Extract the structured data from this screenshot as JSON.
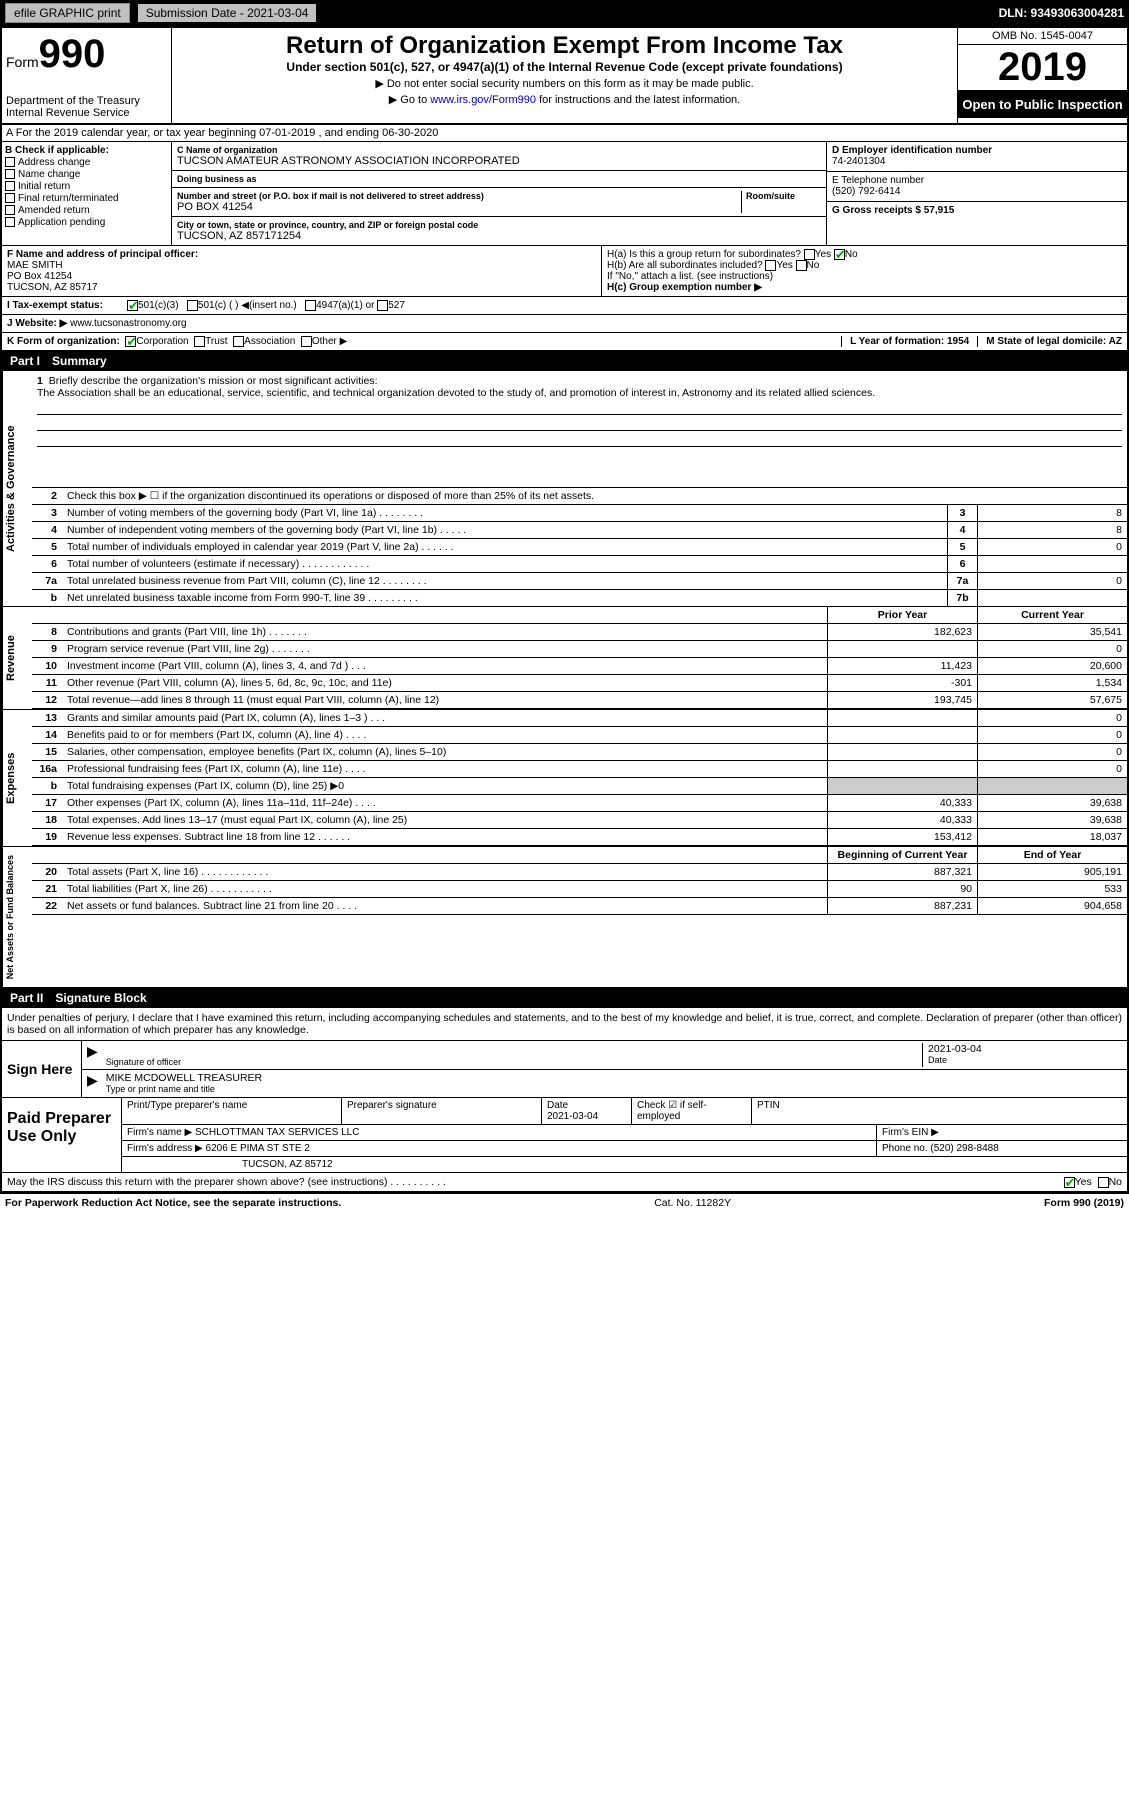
{
  "topbar": {
    "efile": "efile GRAPHIC print",
    "submission_label": "Submission Date - 2021-03-04",
    "dln": "DLN: 93493063004281"
  },
  "header": {
    "form_prefix": "Form",
    "form_number": "990",
    "dept": "Department of the Treasury\nInternal Revenue Service",
    "title": "Return of Organization Exempt From Income Tax",
    "subtitle": "Under section 501(c), 527, or 4947(a)(1) of the Internal Revenue Code (except private foundations)",
    "note1": "▶ Do not enter social security numbers on this form as it may be made public.",
    "note2_prefix": "▶ Go to ",
    "note2_link": "www.irs.gov/Form990",
    "note2_suffix": " for instructions and the latest information.",
    "omb": "OMB No. 1545-0047",
    "year": "2019",
    "open_public": "Open to Public Inspection"
  },
  "row_a": "A For the 2019 calendar year, or tax year beginning 07-01-2019    , and ending 06-30-2020",
  "section_b": {
    "label": "B Check if applicable:",
    "opts": [
      "Address change",
      "Name change",
      "Initial return",
      "Final return/terminated",
      "Amended return",
      "Application pending"
    ]
  },
  "section_c": {
    "name_label": "C Name of organization",
    "name": "TUCSON AMATEUR ASTRONOMY ASSOCIATION INCORPORATED",
    "dba_label": "Doing business as",
    "dba": "",
    "addr_label": "Number and street (or P.O. box if mail is not delivered to street address)",
    "room_label": "Room/suite",
    "addr": "PO BOX 41254",
    "city_label": "City or town, state or province, country, and ZIP or foreign postal code",
    "city": "TUCSON, AZ  857171254"
  },
  "section_d": {
    "ein_label": "D Employer identification number",
    "ein": "74-2401304",
    "phone_label": "E Telephone number",
    "phone": "(520) 792-6414",
    "gross_label": "G Gross receipts $ 57,915"
  },
  "section_f": {
    "label": "F  Name and address of principal officer:",
    "name": "MAE SMITH",
    "addr1": "PO Box 41254",
    "addr2": "TUCSON, AZ  85717"
  },
  "section_h": {
    "ha": "H(a)  Is this a group return for subordinates?",
    "ha_yes": "Yes",
    "ha_no": "No",
    "hb": "H(b)  Are all subordinates included?",
    "hb_yes": "Yes",
    "hb_no": "No",
    "hb_note": "If \"No,\" attach a list. (see instructions)",
    "hc": "H(c)  Group exemption number ▶"
  },
  "row_i": {
    "label": "I   Tax-exempt status:",
    "opt1": "501(c)(3)",
    "opt2": "501(c) (   ) ◀(insert no.)",
    "opt3": "4947(a)(1) or",
    "opt4": "527"
  },
  "row_j": {
    "label": "J   Website: ▶",
    "val": "www.tucsonastronomy.org"
  },
  "row_k": {
    "label": "K Form of organization:",
    "opts": [
      "Corporation",
      "Trust",
      "Association",
      "Other ▶"
    ],
    "l_label": "L Year of formation: 1954",
    "m_label": "M State of legal domicile: AZ"
  },
  "part1": {
    "hdr_num": "Part I",
    "hdr_title": "Summary",
    "sections": {
      "governance": {
        "vtab": "Activities & Governance",
        "q1": {
          "num": "1",
          "text": "Briefly describe the organization's mission or most significant activities:",
          "mission": "The Association shall be an educational, service, scientific, and technical organization devoted to the study of, and promotion of interest in, Astronomy and its related allied sciences."
        },
        "q2": {
          "num": "2",
          "text": "Check this box ▶ ☐  if the organization discontinued its operations or disposed of more than 25% of its net assets."
        },
        "rows": [
          {
            "num": "3",
            "text": "Number of voting members of the governing body (Part VI, line 1a)   .    .    .    .    .    .    .    .",
            "box": "3",
            "val": "8"
          },
          {
            "num": "4",
            "text": "Number of independent voting members of the governing body (Part VI, line 1b)  .    .    .    .    .",
            "box": "4",
            "val": "8"
          },
          {
            "num": "5",
            "text": "Total number of individuals employed in calendar year 2019 (Part V, line 2a)  .    .    .    .    .    .",
            "box": "5",
            "val": "0"
          },
          {
            "num": "6",
            "text": "Total number of volunteers (estimate if necessary)   .    .    .    .    .    .    .    .    .    .    .    .",
            "box": "6",
            "val": ""
          },
          {
            "num": "7a",
            "text": "Total unrelated business revenue from Part VIII, column (C), line 12  .    .    .    .    .    .    .    .",
            "box": "7a",
            "val": "0"
          },
          {
            "num": "b",
            "text": "Net unrelated business taxable income from Form 990-T, line 39   .    .    .    .    .    .    .    .    .",
            "box": "7b",
            "val": ""
          }
        ]
      },
      "revenue": {
        "vtab": "Revenue",
        "hdr_prior": "Prior Year",
        "hdr_current": "Current Year",
        "rows": [
          {
            "num": "8",
            "text": "Contributions and grants (Part VIII, line 1h)   .    .    .    .    .    .    .",
            "v1": "182,623",
            "v2": "35,541"
          },
          {
            "num": "9",
            "text": "Program service revenue (Part VIII, line 2g)   .    .    .    .    .    .    .",
            "v1": "",
            "v2": "0"
          },
          {
            "num": "10",
            "text": "Investment income (Part VIII, column (A), lines 3, 4, and 7d )  .    .    .",
            "v1": "11,423",
            "v2": "20,600"
          },
          {
            "num": "11",
            "text": "Other revenue (Part VIII, column (A), lines 5, 6d, 8c, 9c, 10c, and 11e)",
            "v1": "-301",
            "v2": "1,534"
          },
          {
            "num": "12",
            "text": "Total revenue—add lines 8 through 11 (must equal Part VIII, column (A), line 12)",
            "v1": "193,745",
            "v2": "57,675"
          }
        ]
      },
      "expenses": {
        "vtab": "Expenses",
        "rows": [
          {
            "num": "13",
            "text": "Grants and similar amounts paid (Part IX, column (A), lines 1–3 )  .    .    .",
            "v1": "",
            "v2": "0"
          },
          {
            "num": "14",
            "text": "Benefits paid to or for members (Part IX, column (A), line 4)  .    .    .    .",
            "v1": "",
            "v2": "0"
          },
          {
            "num": "15",
            "text": "Salaries, other compensation, employee benefits (Part IX, column (A), lines 5–10)",
            "v1": "",
            "v2": "0"
          },
          {
            "num": "16a",
            "text": "Professional fundraising fees (Part IX, column (A), line 11e)  .    .    .    .",
            "v1": "",
            "v2": "0"
          },
          {
            "num": "b",
            "text": "Total fundraising expenses (Part IX, column (D), line 25) ▶0",
            "v1": "",
            "v2": "",
            "shade": true
          },
          {
            "num": "17",
            "text": "Other expenses (Part IX, column (A), lines 11a–11d, 11f–24e)  .    .    .    .",
            "v1": "40,333",
            "v2": "39,638"
          },
          {
            "num": "18",
            "text": "Total expenses. Add lines 13–17 (must equal Part IX, column (A), line 25)",
            "v1": "40,333",
            "v2": "39,638"
          },
          {
            "num": "19",
            "text": "Revenue less expenses. Subtract line 18 from line 12 .    .    .    .    .    .",
            "v1": "153,412",
            "v2": "18,037"
          }
        ]
      },
      "netassets": {
        "vtab": "Net Assets or Fund Balances",
        "hdr_begin": "Beginning of Current Year",
        "hdr_end": "End of Year",
        "rows": [
          {
            "num": "20",
            "text": "Total assets (Part X, line 16)  .    .    .    .    .    .    .    .    .    .    .    .",
            "v1": "887,321",
            "v2": "905,191"
          },
          {
            "num": "21",
            "text": "Total liabilities (Part X, line 26)   .    .    .    .    .    .    .    .    .    .    .",
            "v1": "90",
            "v2": "533"
          },
          {
            "num": "22",
            "text": "Net assets or fund balances. Subtract line 21 from line 20  .    .    .    .",
            "v1": "887,231",
            "v2": "904,658"
          }
        ]
      }
    }
  },
  "part2": {
    "hdr_num": "Part II",
    "hdr_title": "Signature Block",
    "declaration": "Under penalties of perjury, I declare that I have examined this return, including accompanying schedules and statements, and to the best of my knowledge and belief, it is true, correct, and complete. Declaration of preparer (other than officer) is based on all information of which preparer has any knowledge.",
    "sign_here": "Sign Here",
    "sig_officer_label": "Signature of officer",
    "sig_date_label": "Date",
    "sig_date": "2021-03-04",
    "officer_name": "MIKE MCDOWELL  TREASURER",
    "officer_label": "Type or print name and title",
    "paid_preparer": "Paid Preparer Use Only",
    "prep_name_label": "Print/Type preparer's name",
    "prep_sig_label": "Preparer's signature",
    "prep_date_label": "Date",
    "prep_date": "2021-03-04",
    "prep_check_label": "Check ☑ if self-employed",
    "prep_ptin_label": "PTIN",
    "firm_name_label": "Firm's name    ▶",
    "firm_name": "SCHLOTTMAN TAX SERVICES LLC",
    "firm_ein_label": "Firm's EIN ▶",
    "firm_addr_label": "Firm's address ▶",
    "firm_addr1": "6206 E PIMA ST STE 2",
    "firm_addr2": "TUCSON, AZ  85712",
    "firm_phone_label": "Phone no. (520) 298-8488",
    "discuss": "May the IRS discuss this return with the preparer shown above? (see instructions)   .    .    .    .    .    .    .    .    .    .",
    "discuss_yes": "Yes",
    "discuss_no": "No"
  },
  "footer": {
    "paperwork": "For Paperwork Reduction Act Notice, see the separate instructions.",
    "cat": "Cat. No. 11282Y",
    "form": "Form 990 (2019)"
  }
}
